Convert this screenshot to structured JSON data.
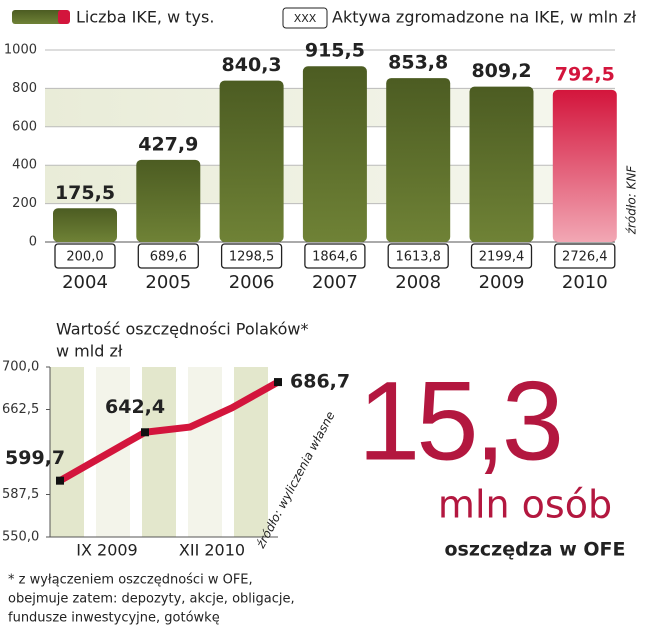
{
  "chart_data": [
    {
      "type": "bar",
      "legend": "top",
      "categories": [
        "2004",
        "2005",
        "2006",
        "2007",
        "2008",
        "2009",
        "2010"
      ],
      "series": [
        {
          "name": "Liczba IKE, w tys.",
          "color": "#5a6b2c",
          "values": [
            175.5,
            427.9,
            840.3,
            915.5,
            853.8,
            809.2,
            792.5
          ],
          "value_labels": [
            "175,5",
            "427,9",
            "840,3",
            "915,5",
            "853,8",
            "809,2",
            "792,5"
          ],
          "colors": [
            "#5a6b2c",
            "#5a6b2c",
            "#5a6b2c",
            "#5a6b2c",
            "#5a6b2c",
            "#5a6b2c",
            "#d3153c"
          ]
        },
        {
          "name": "Aktywa zgromadzone na IKE, w mln zł",
          "marker_label": "XXX",
          "values": [
            200.0,
            689.6,
            1298.5,
            1864.6,
            1613.8,
            2199.4,
            2726.4
          ],
          "value_labels": [
            "200,0",
            "689,6",
            "1298,5",
            "1864,6",
            "1613,8",
            "2199,4",
            "2726,4"
          ]
        }
      ],
      "ylim": [
        0,
        1000
      ],
      "yticks": [
        0,
        200,
        400,
        600,
        800,
        1000
      ],
      "grid": true,
      "source": "źródło: KNF"
    },
    {
      "type": "line",
      "title": "Wartość oszczędności Polaków*",
      "subtitle": "w mld zł",
      "x_labels": [
        "IX 2009",
        "XII 2010"
      ],
      "series": [
        {
          "color": "#d3153c",
          "values": [
            599.7,
            642.4,
            647,
            664,
            686.7
          ],
          "value_labels": [
            "599,7",
            "642,4",
            null,
            null,
            "686,7"
          ]
        }
      ],
      "ylim": [
        550,
        700
      ],
      "yticks": [
        {
          "value": 550,
          "label": "550,0"
        },
        {
          "value": 587.5,
          "label": "587,5"
        },
        {
          "value": 662.5,
          "label": "662,5"
        },
        {
          "value": 700,
          "label": "700,0"
        }
      ],
      "source": "źródło: wyliczenia własne",
      "footnote": [
        "* z wyłączeniem oszczędności w OFE,",
        "obejmuje zatem: depozyty, akcje, obligacje,",
        "fundusze inwestycyjne, gotówkę"
      ]
    }
  ],
  "highlight": {
    "number": "15,3",
    "unit": "mln osób",
    "caption": "oszczędza w OFE"
  }
}
